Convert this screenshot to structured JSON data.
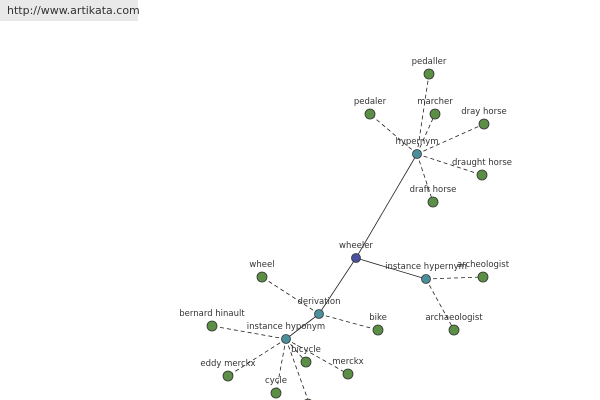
{
  "header": {
    "url": "http://www.artikata.com"
  },
  "nodes": [
    {
      "label": "wheeler"
    },
    {
      "label": "hypernym"
    },
    {
      "label": "instance hypernym"
    },
    {
      "label": "derivation"
    },
    {
      "label": "instance hyponym"
    },
    {
      "label": "pedaller"
    },
    {
      "label": "pedaler"
    },
    {
      "label": "marcher"
    },
    {
      "label": "dray horse"
    },
    {
      "label": "draught horse"
    },
    {
      "label": "draft horse"
    },
    {
      "label": "archeologist"
    },
    {
      "label": "archaeologist"
    },
    {
      "label": "wheel"
    },
    {
      "label": "bike"
    },
    {
      "label": "bernard hinault"
    },
    {
      "label": "bicycle"
    },
    {
      "label": "eddy merckx"
    },
    {
      "label": "merckx"
    },
    {
      "label": "cycle"
    }
  ]
}
